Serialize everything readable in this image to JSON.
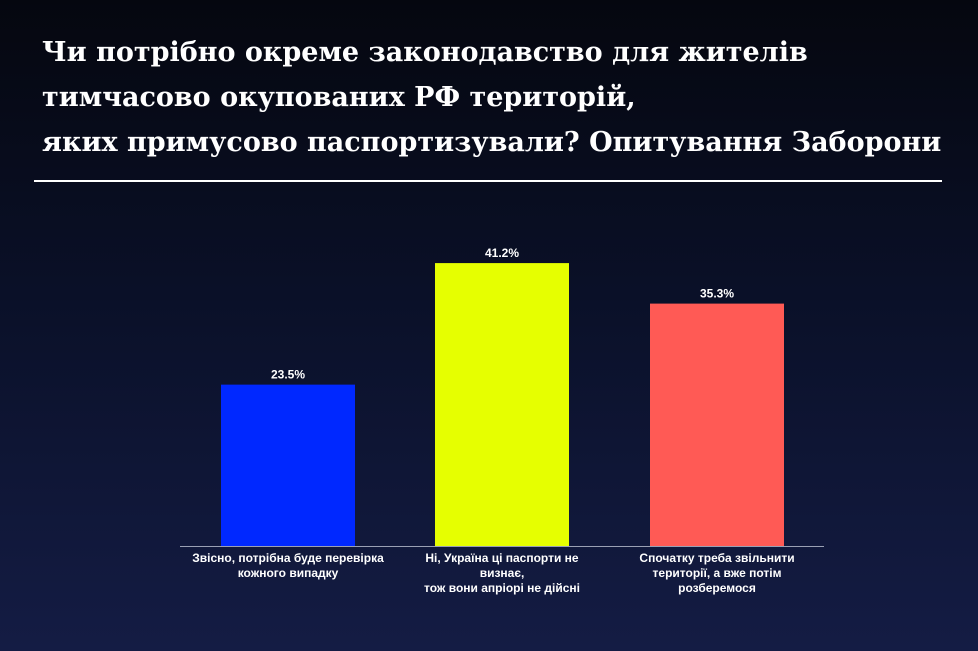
{
  "title_lines": [
    "Чи потрібно окреме законодавство для жителів",
    "тимчасово окупованих РФ територій,",
    "яких примусово паспортизували? Опитування Заборони"
  ],
  "chart_data": {
    "type": "bar",
    "title": "Чи потрібно окреме законодавство для жителів тимчасово окупованих РФ територій, яких примусово паспортизували? Опитування Заборони",
    "categories": [
      [
        "Звісно, потрібна буде перевірка",
        "кожного випадку"
      ],
      [
        "Ні, Україна ці паспорти не визнає,",
        "тож вони апріорі не дійсні"
      ],
      [
        "Спочатку треба звільнити",
        "території, а вже потім",
        "розберемося"
      ]
    ],
    "values": [
      23.5,
      41.2,
      35.3
    ],
    "value_labels": [
      "23.5%",
      "41.2%",
      "35.3%"
    ],
    "colors": [
      "#0028ff",
      "#e6ff00",
      "#ff5a55"
    ],
    "ylim": [
      0,
      45
    ],
    "grid": false,
    "legend": "none"
  }
}
